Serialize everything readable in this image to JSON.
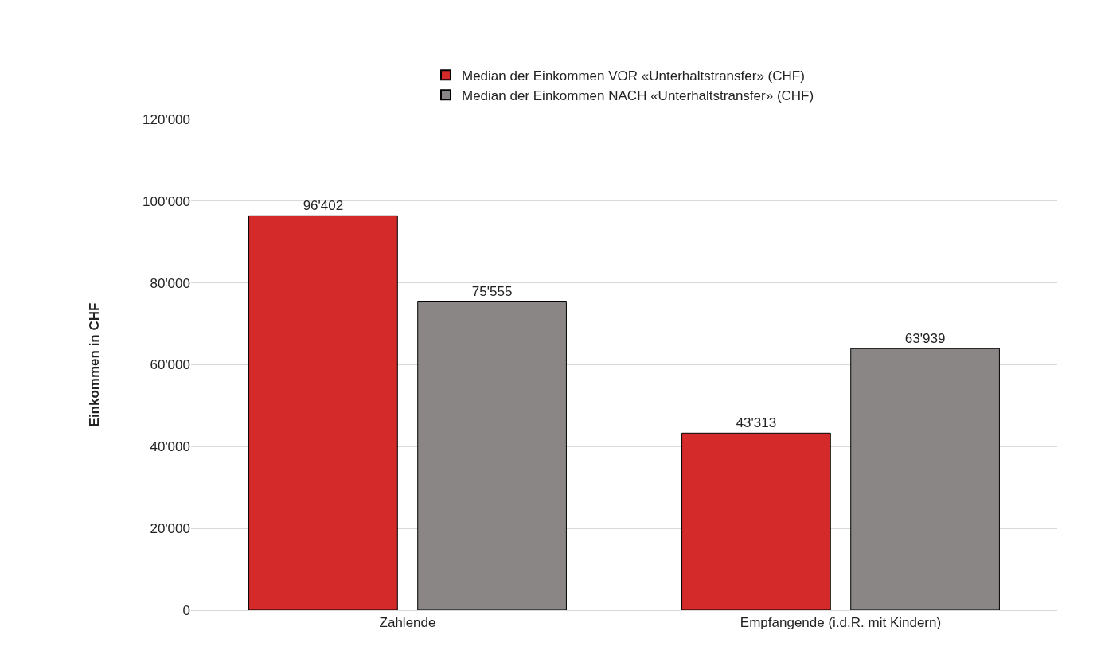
{
  "chart_data": {
    "type": "bar",
    "ylabel": "Einkommen in CHF",
    "categories": [
      "Zahlende",
      "Empfangende (i.d.R. mit Kindern)"
    ],
    "series": [
      {
        "name": "Median der Einkommen VOR «Unterhaltstransfer» (CHF)",
        "color": "#d42a2a",
        "values": [
          96402,
          43313
        ],
        "value_labels": [
          "96'402",
          "43'313"
        ]
      },
      {
        "name": "Median der Einkommen NACH «Unterhaltstransfer» (CHF)",
        "color": "#8a8685",
        "values": [
          75555,
          63939
        ],
        "value_labels": [
          "75'555",
          "63'939"
        ]
      }
    ],
    "ylim": [
      0,
      120000
    ],
    "yticks": [
      {
        "value": 0,
        "label": "0"
      },
      {
        "value": 20000,
        "label": "20'000"
      },
      {
        "value": 40000,
        "label": "40'000"
      },
      {
        "value": 60000,
        "label": "60'000"
      },
      {
        "value": 80000,
        "label": "80'000"
      },
      {
        "value": 100000,
        "label": "100'000"
      },
      {
        "value": 120000,
        "label": "120'000"
      }
    ],
    "grid": "y",
    "legend": "top"
  }
}
